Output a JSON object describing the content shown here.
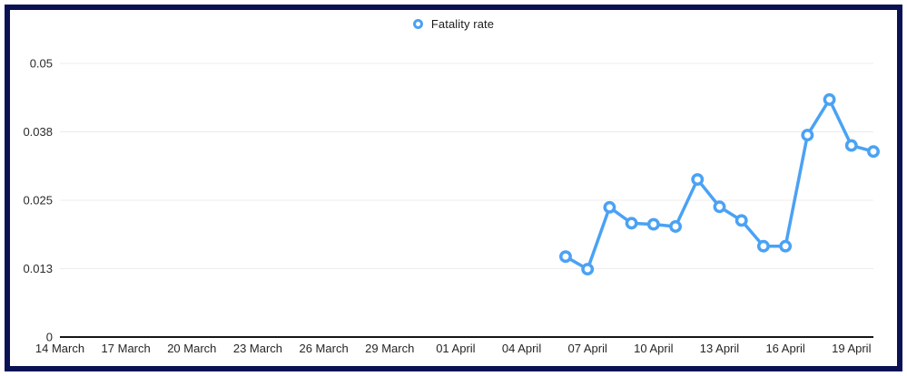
{
  "colors": {
    "series_blue": "#4aa2f4",
    "frame_navy": "#0a1254",
    "gridline_gray": "#ececec",
    "axis_black": "#151515",
    "label_dark": "#262626",
    "background": "#ffffff"
  },
  "legend": {
    "items": [
      {
        "label": "Fatality rate",
        "marker": "donut-circle",
        "color": "#4aa2f4"
      }
    ]
  },
  "chart_data": {
    "type": "line",
    "title": "",
    "xlabel": "",
    "ylabel": "",
    "legend_position": "top-center",
    "grid": true,
    "ylim": [
      0,
      0.05
    ],
    "x_axis_total_days": 37,
    "y_ticks": [
      {
        "label": "0",
        "value": 0
      },
      {
        "label": "0.013",
        "value": 0.0125
      },
      {
        "label": "0.025",
        "value": 0.025
      },
      {
        "label": "0.038",
        "value": 0.0375
      },
      {
        "label": "0.05",
        "value": 0.05
      }
    ],
    "x_ticks": [
      {
        "label": "14 March",
        "day": 0
      },
      {
        "label": "17 March",
        "day": 3
      },
      {
        "label": "20 March",
        "day": 6
      },
      {
        "label": "23 March",
        "day": 9
      },
      {
        "label": "26 March",
        "day": 12
      },
      {
        "label": "29 March",
        "day": 15
      },
      {
        "label": "01 April",
        "day": 18
      },
      {
        "label": "04 April",
        "day": 21
      },
      {
        "label": "07 April",
        "day": 24
      },
      {
        "label": "10 April",
        "day": 27
      },
      {
        "label": "13 April",
        "day": 30
      },
      {
        "label": "16 April",
        "day": 33
      },
      {
        "label": "19 April",
        "day": 36
      }
    ],
    "series": [
      {
        "name": "Fatality rate",
        "marker": "open-circle",
        "points": [
          {
            "date": "06 April",
            "day": 23,
            "value": 0.0147
          },
          {
            "date": "07 April",
            "day": 24,
            "value": 0.0124
          },
          {
            "date": "08 April",
            "day": 25,
            "value": 0.0237
          },
          {
            "date": "09 April",
            "day": 26,
            "value": 0.0208
          },
          {
            "date": "10 April",
            "day": 27,
            "value": 0.0206
          },
          {
            "date": "11 April",
            "day": 28,
            "value": 0.0202
          },
          {
            "date": "12 April",
            "day": 29,
            "value": 0.0288
          },
          {
            "date": "13 April",
            "day": 30,
            "value": 0.0238
          },
          {
            "date": "14 April",
            "day": 31,
            "value": 0.0213
          },
          {
            "date": "15 April",
            "day": 32,
            "value": 0.0166
          },
          {
            "date": "16 April",
            "day": 33,
            "value": 0.0166
          },
          {
            "date": "17 April",
            "day": 34,
            "value": 0.0369
          },
          {
            "date": "18 April",
            "day": 35,
            "value": 0.0434
          },
          {
            "date": "19 April",
            "day": 36,
            "value": 0.035
          },
          {
            "date": "20 April",
            "day": 37,
            "value": 0.0339
          }
        ]
      }
    ]
  }
}
